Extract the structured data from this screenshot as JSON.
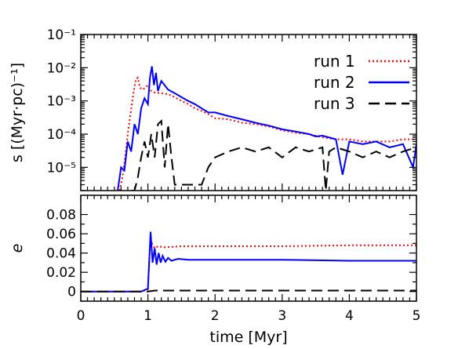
{
  "chart_data": [
    {
      "type": "line",
      "ylabel": "s  [(Myr·pc)⁻¹]",
      "yscale": "log",
      "ylim": [
        2e-06,
        0.1
      ],
      "xlim": [
        0,
        5
      ],
      "ytick_labels": [
        "10⁻⁵",
        "10⁻⁴",
        "10⁻³",
        "10⁻²",
        "10⁻¹"
      ],
      "ytick_values": [
        1e-05,
        0.0001,
        0.001,
        0.01,
        0.1
      ],
      "legend_placement": "top-right",
      "series": [
        {
          "name": "run  1",
          "color": "#ff0000",
          "style": "dotted",
          "points": [
            [
              0.58,
              2e-06
            ],
            [
              0.62,
              5e-06
            ],
            [
              0.66,
              2e-05
            ],
            [
              0.7,
              0.0001
            ],
            [
              0.74,
              0.0004
            ],
            [
              0.78,
              0.0015
            ],
            [
              0.82,
              0.0045
            ],
            [
              0.85,
              0.005
            ],
            [
              0.88,
              0.0025
            ],
            [
              0.92,
              0.0022
            ],
            [
              0.96,
              0.0025
            ],
            [
              1.0,
              0.003
            ],
            [
              1.05,
              0.002
            ],
            [
              1.1,
              0.0018
            ],
            [
              1.2,
              0.0017
            ],
            [
              1.3,
              0.0016
            ],
            [
              1.4,
              0.0013
            ],
            [
              1.5,
              0.001
            ],
            [
              1.6,
              0.0008
            ],
            [
              1.7,
              0.0006
            ],
            [
              1.8,
              0.0005
            ],
            [
              1.9,
              0.0004
            ],
            [
              2.0,
              0.0003
            ],
            [
              2.2,
              0.00028
            ],
            [
              2.4,
              0.00022
            ],
            [
              2.6,
              0.0002
            ],
            [
              2.8,
              0.00017
            ],
            [
              3.0,
              0.00013
            ],
            [
              3.2,
              0.00011
            ],
            [
              3.4,
              0.0001
            ],
            [
              3.6,
              8e-05
            ],
            [
              3.8,
              7e-05
            ],
            [
              4.0,
              7e-05
            ],
            [
              4.2,
              6e-05
            ],
            [
              4.4,
              6e-05
            ],
            [
              4.6,
              6e-05
            ],
            [
              4.8,
              7e-05
            ],
            [
              5.0,
              7e-05
            ]
          ]
        },
        {
          "name": "run  2",
          "color": "#0000ff",
          "style": "solid",
          "points": [
            [
              0.55,
              2e-06
            ],
            [
              0.6,
              1e-05
            ],
            [
              0.65,
              8e-06
            ],
            [
              0.7,
              6e-05
            ],
            [
              0.75,
              3e-05
            ],
            [
              0.8,
              0.0002
            ],
            [
              0.85,
              0.0001
            ],
            [
              0.9,
              0.0006
            ],
            [
              0.95,
              0.0012
            ],
            [
              1.0,
              0.0008
            ],
            [
              1.03,
              0.005
            ],
            [
              1.06,
              0.011
            ],
            [
              1.09,
              0.003
            ],
            [
              1.12,
              0.007
            ],
            [
              1.15,
              0.002
            ],
            [
              1.2,
              0.004
            ],
            [
              1.3,
              0.0022
            ],
            [
              1.4,
              0.0017
            ],
            [
              1.5,
              0.0013
            ],
            [
              1.6,
              0.001
            ],
            [
              1.7,
              0.0008
            ],
            [
              1.8,
              0.0006
            ],
            [
              1.9,
              0.00045
            ],
            [
              2.0,
              0.00045
            ],
            [
              2.2,
              0.00035
            ],
            [
              2.4,
              0.00028
            ],
            [
              2.6,
              0.00022
            ],
            [
              2.8,
              0.00018
            ],
            [
              3.0,
              0.00014
            ],
            [
              3.2,
              0.00012
            ],
            [
              3.4,
              0.0001
            ],
            [
              3.5,
              8.5e-05
            ],
            [
              3.6,
              9e-05
            ],
            [
              3.8,
              7e-05
            ],
            [
              3.9,
              6e-06
            ],
            [
              4.0,
              6e-05
            ],
            [
              4.2,
              5e-05
            ],
            [
              4.4,
              6e-05
            ],
            [
              4.6,
              4e-05
            ],
            [
              4.8,
              5e-05
            ],
            [
              4.95,
              1e-05
            ],
            [
              5.0,
              5e-05
            ]
          ]
        },
        {
          "name": "run  3",
          "color": "#000000",
          "style": "dashed",
          "points": [
            [
              0.75,
              2e-06
            ],
            [
              0.8,
              2e-06
            ],
            [
              0.85,
              5e-06
            ],
            [
              0.9,
              2e-05
            ],
            [
              0.95,
              6e-05
            ],
            [
              1.0,
              2e-05
            ],
            [
              1.05,
              0.0001
            ],
            [
              1.1,
              2e-05
            ],
            [
              1.15,
              0.0002
            ],
            [
              1.2,
              0.00025
            ],
            [
              1.25,
              1e-05
            ],
            [
              1.3,
              0.0002
            ],
            [
              1.35,
              2e-05
            ],
            [
              1.4,
              3e-06
            ],
            [
              1.8,
              3e-06
            ],
            [
              1.9,
              1e-05
            ],
            [
              2.0,
              2e-05
            ],
            [
              2.2,
              3e-05
            ],
            [
              2.4,
              4e-05
            ],
            [
              2.6,
              3e-05
            ],
            [
              2.8,
              4e-05
            ],
            [
              3.0,
              2e-05
            ],
            [
              3.2,
              4e-05
            ],
            [
              3.4,
              3e-05
            ],
            [
              3.6,
              4e-05
            ],
            [
              3.65,
              2e-06
            ],
            [
              3.7,
              3e-05
            ],
            [
              3.8,
              4e-05
            ],
            [
              4.0,
              3e-05
            ],
            [
              4.2,
              2e-05
            ],
            [
              4.4,
              3e-05
            ],
            [
              4.6,
              2e-05
            ],
            [
              4.8,
              3e-05
            ],
            [
              5.0,
              4e-05
            ]
          ]
        }
      ]
    },
    {
      "type": "line",
      "xlabel": "time  [Myr]",
      "ylabel": "e",
      "xlim": [
        0,
        5
      ],
      "ylim": [
        -0.01,
        0.1
      ],
      "xtick_labels": [
        "0",
        "1",
        "2",
        "3",
        "4",
        "5"
      ],
      "xtick_values": [
        0,
        1,
        2,
        3,
        4,
        5
      ],
      "ytick_labels": [
        "0",
        "0.02",
        "0.04",
        "0.06",
        "0.08"
      ],
      "ytick_values": [
        0,
        0.02,
        0.04,
        0.06,
        0.08
      ],
      "series": [
        {
          "name": "run  1",
          "color": "#ff0000",
          "style": "dotted",
          "points": [
            [
              0,
              0
            ],
            [
              0.9,
              0
            ],
            [
              1.0,
              0.002
            ],
            [
              1.03,
              0.045
            ],
            [
              1.06,
              0.05
            ],
            [
              1.1,
              0.045
            ],
            [
              1.15,
              0.047
            ],
            [
              1.25,
              0.046
            ],
            [
              1.5,
              0.047
            ],
            [
              2.0,
              0.047
            ],
            [
              3.0,
              0.047
            ],
            [
              4.0,
              0.048
            ],
            [
              5.0,
              0.048
            ]
          ]
        },
        {
          "name": "run  2",
          "color": "#0000ff",
          "style": "solid",
          "points": [
            [
              0,
              0
            ],
            [
              0.9,
              0
            ],
            [
              1.0,
              0.003
            ],
            [
              1.04,
              0.062
            ],
            [
              1.07,
              0.03
            ],
            [
              1.1,
              0.045
            ],
            [
              1.13,
              0.028
            ],
            [
              1.16,
              0.04
            ],
            [
              1.19,
              0.03
            ],
            [
              1.22,
              0.037
            ],
            [
              1.26,
              0.031
            ],
            [
              1.3,
              0.035
            ],
            [
              1.35,
              0.032
            ],
            [
              1.45,
              0.034
            ],
            [
              1.6,
              0.033
            ],
            [
              2.0,
              0.033
            ],
            [
              3.0,
              0.033
            ],
            [
              4.0,
              0.032
            ],
            [
              5.0,
              0.032
            ]
          ]
        },
        {
          "name": "run  3",
          "color": "#000000",
          "style": "dashed",
          "points": [
            [
              0,
              0
            ],
            [
              1.0,
              0
            ],
            [
              1.1,
              0.001
            ],
            [
              1.5,
              0.001
            ],
            [
              5.0,
              0.001
            ]
          ]
        }
      ]
    }
  ]
}
